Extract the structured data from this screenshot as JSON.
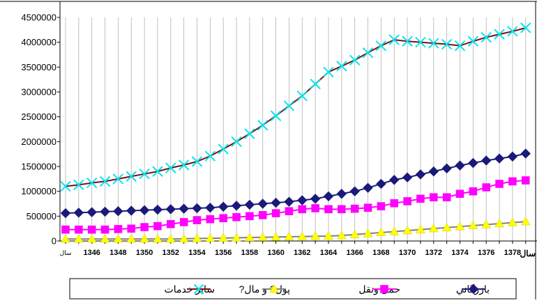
{
  "chart_data": {
    "type": "line",
    "title": "",
    "xlabel": "سال",
    "ylabel": "",
    "ylim": [
      0,
      4500000
    ],
    "yticks": [
      0,
      500000,
      1000000,
      1500000,
      2000000,
      2500000,
      3000000,
      3500000,
      4000000,
      4500000
    ],
    "ytick_labels": [
      "0",
      "500000",
      "1000000",
      "1500000",
      "2000000",
      "2500000",
      "3000000",
      "3500000",
      "4000000",
      "4500000"
    ],
    "grid": "vertical",
    "x_first_label": "سال",
    "x_tick_labels": [
      "1346",
      "1348",
      "1350",
      "1352",
      "1354",
      "1356",
      "1358",
      "1360",
      "1362",
      "1364",
      "1366",
      "1368",
      "1370",
      "1372",
      "1374",
      "1376",
      "1378"
    ],
    "x": [
      1344,
      1345,
      1346,
      1347,
      1348,
      1349,
      1350,
      1351,
      1352,
      1353,
      1354,
      1355,
      1356,
      1357,
      1358,
      1359,
      1360,
      1361,
      1362,
      1363,
      1364,
      1365,
      1366,
      1367,
      1368,
      1369,
      1370,
      1371,
      1372,
      1373,
      1374,
      1375,
      1376,
      1377,
      1378,
      1379
    ],
    "legend_position": "bottom",
    "series": [
      {
        "name": "بازرگاني",
        "color": "#1a1a7a",
        "marker": "diamond",
        "values": [
          560000,
          570000,
          580000,
          590000,
          600000,
          610000,
          620000,
          630000,
          640000,
          650000,
          660000,
          670000,
          690000,
          710000,
          730000,
          750000,
          770000,
          790000,
          820000,
          850000,
          900000,
          950000,
          1000000,
          1070000,
          1150000,
          1230000,
          1280000,
          1340000,
          1400000,
          1460000,
          1520000,
          1570000,
          1620000,
          1660000,
          1700000,
          1760000
        ]
      },
      {
        "name": "حمل ونقل",
        "color": "#ff00ff",
        "marker": "square",
        "values": [
          230000,
          230000,
          230000,
          230000,
          240000,
          250000,
          280000,
          300000,
          340000,
          380000,
          420000,
          440000,
          460000,
          480000,
          500000,
          520000,
          560000,
          600000,
          640000,
          660000,
          640000,
          640000,
          650000,
          670000,
          700000,
          760000,
          800000,
          850000,
          880000,
          880000,
          950000,
          1000000,
          1080000,
          1150000,
          1200000,
          1220000
        ]
      },
      {
        "name": "پول? و مال?",
        "color": "#ffff00",
        "line_color": "#808080",
        "marker": "triangle",
        "values": [
          40000,
          40000,
          40000,
          40000,
          40000,
          40000,
          40000,
          40000,
          40000,
          45000,
          50000,
          55000,
          60000,
          65000,
          70000,
          75000,
          80000,
          85000,
          90000,
          95000,
          100000,
          110000,
          130000,
          150000,
          170000,
          190000,
          210000,
          230000,
          250000,
          270000,
          290000,
          310000,
          330000,
          350000,
          370000,
          390000
        ]
      },
      {
        "name": "ساير خدمات",
        "color": "#00e5ee",
        "line_color": "#7a1010",
        "marker": "x",
        "values": [
          1100000,
          1130000,
          1170000,
          1200000,
          1250000,
          1300000,
          1350000,
          1400000,
          1470000,
          1530000,
          1600000,
          1710000,
          1850000,
          2000000,
          2160000,
          2330000,
          2520000,
          2720000,
          2920000,
          3160000,
          3400000,
          3520000,
          3640000,
          3790000,
          3930000,
          4050000,
          4020000,
          4000000,
          3980000,
          3960000,
          3930000,
          4020000,
          4100000,
          4160000,
          4220000,
          4290000
        ]
      }
    ]
  }
}
